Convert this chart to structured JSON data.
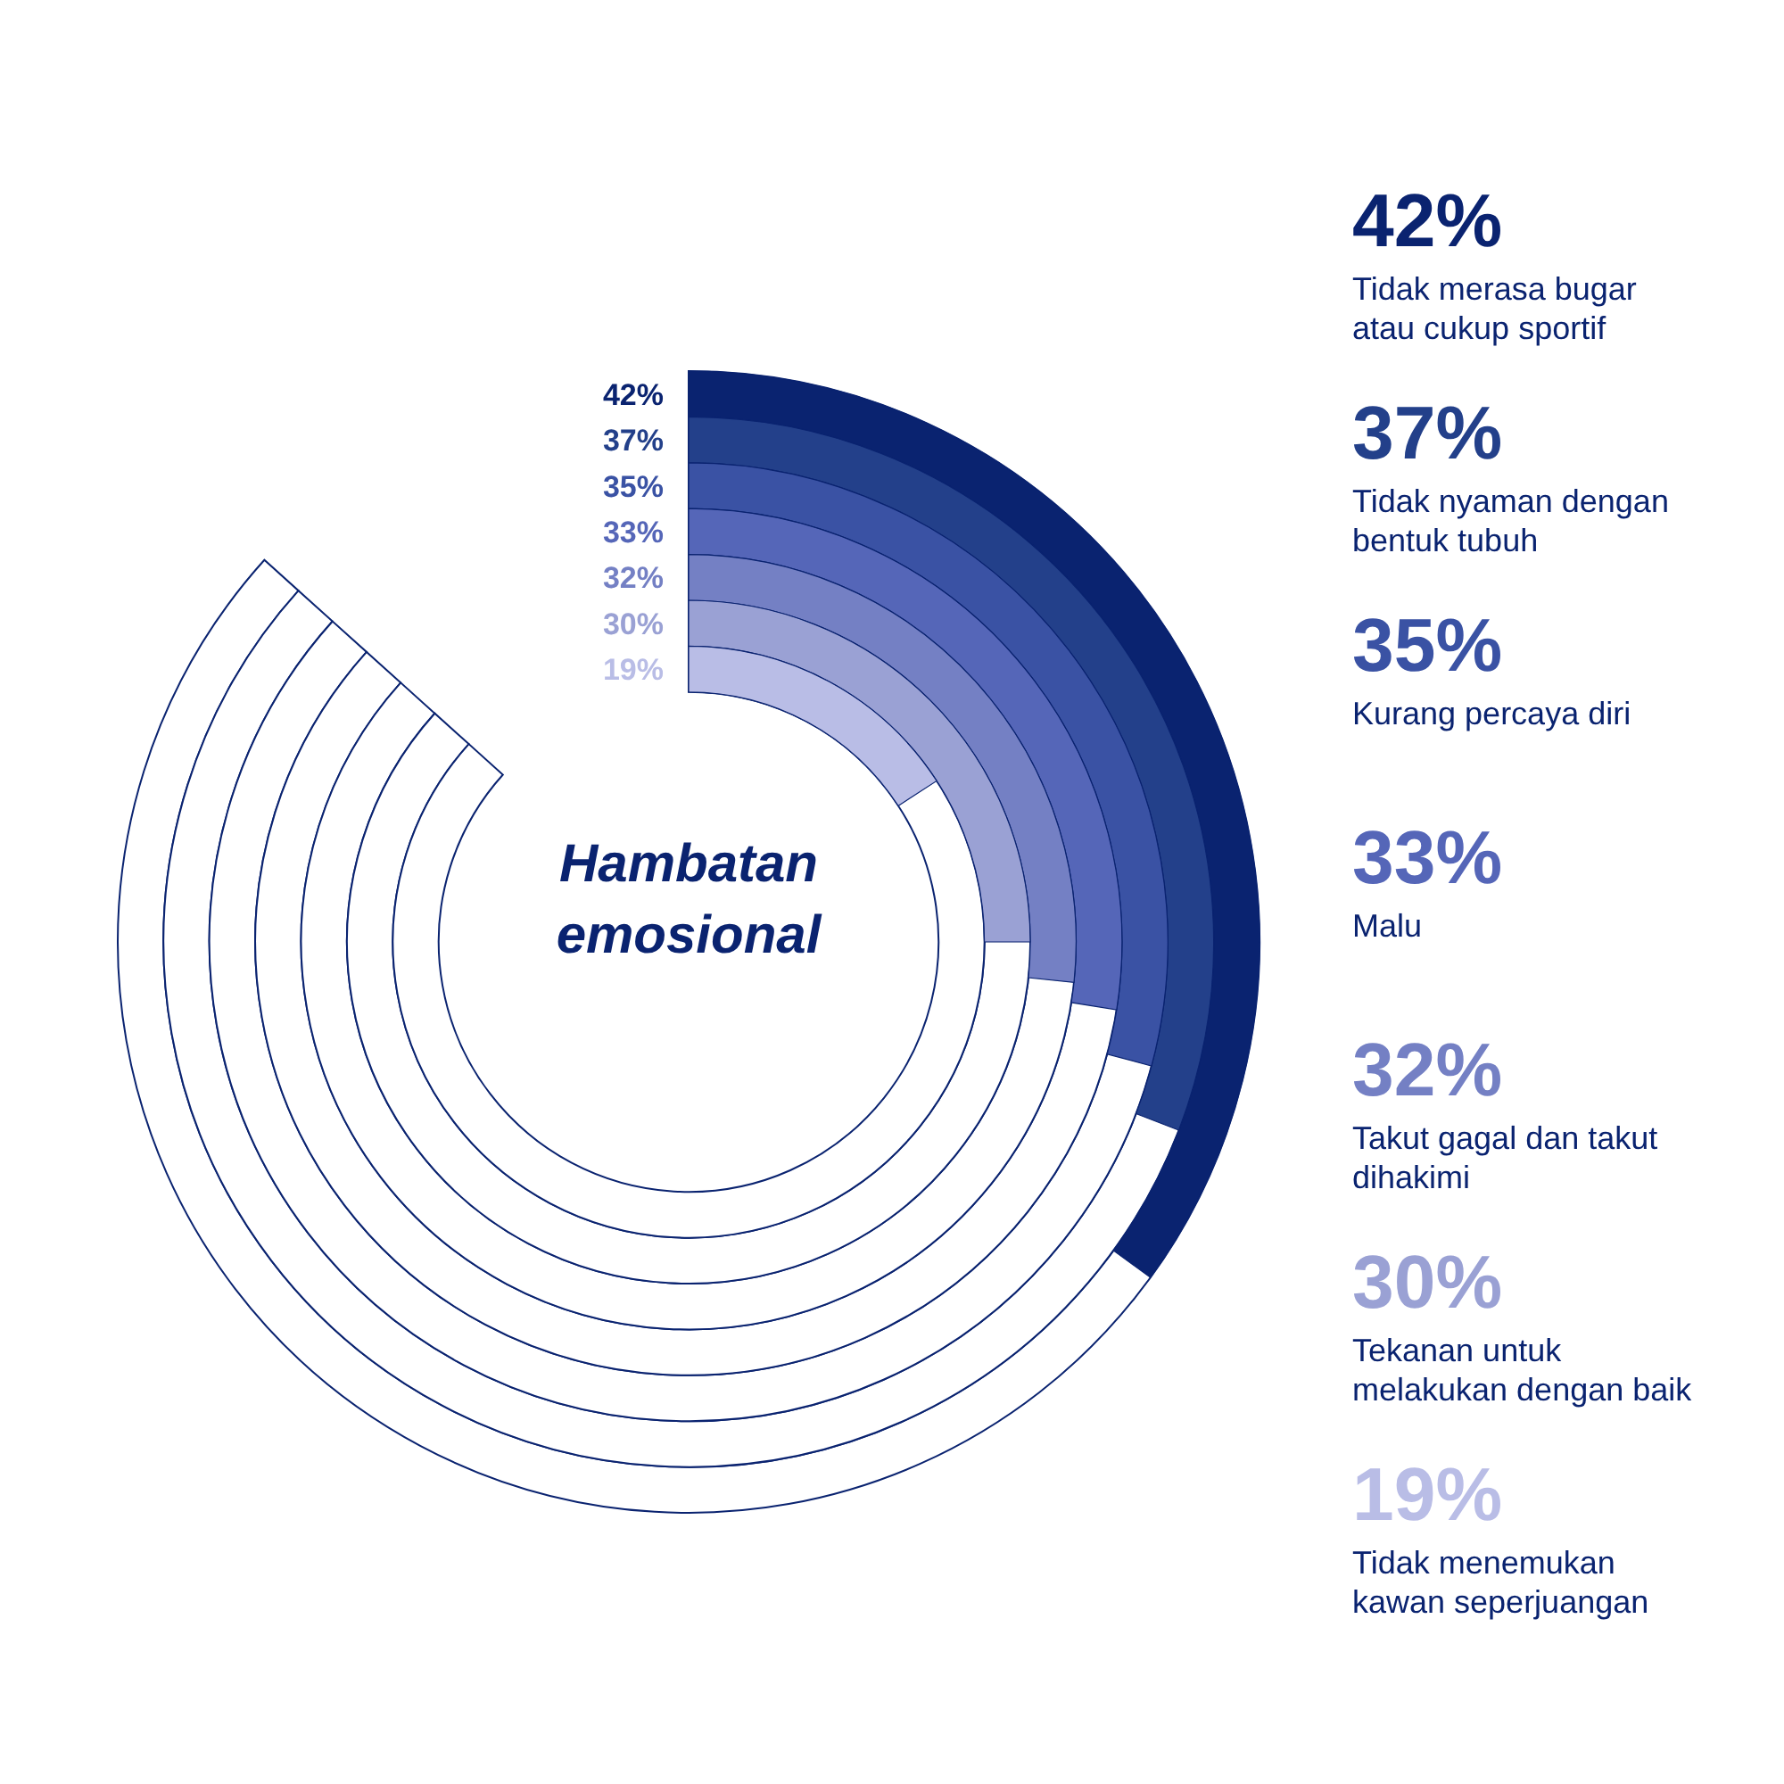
{
  "chart_data": {
    "type": "other",
    "title": "Hambatan\nemosional",
    "categories": [
      "Tidak merasa bugar\natau cukup sportif",
      "Tidak nyaman dengan\nbentuk tubuh",
      "Kurang percaya diri",
      "Malu",
      "Takut gagal dan takut\ndihakimi",
      "Tekanan untuk\nmelakukan dengan baik",
      "Tidak menemukan\nkawan seperjuangan"
    ],
    "values": [
      42,
      37,
      35,
      33,
      32,
      30,
      19
    ],
    "value_labels": [
      "42%",
      "37%",
      "35%",
      "33%",
      "32%",
      "30%",
      "19%"
    ],
    "colors": [
      "#0a2370",
      "#23408a",
      "#3a52a4",
      "#5566b8",
      "#7480c4",
      "#9aa1d4",
      "#b9bde6"
    ]
  }
}
